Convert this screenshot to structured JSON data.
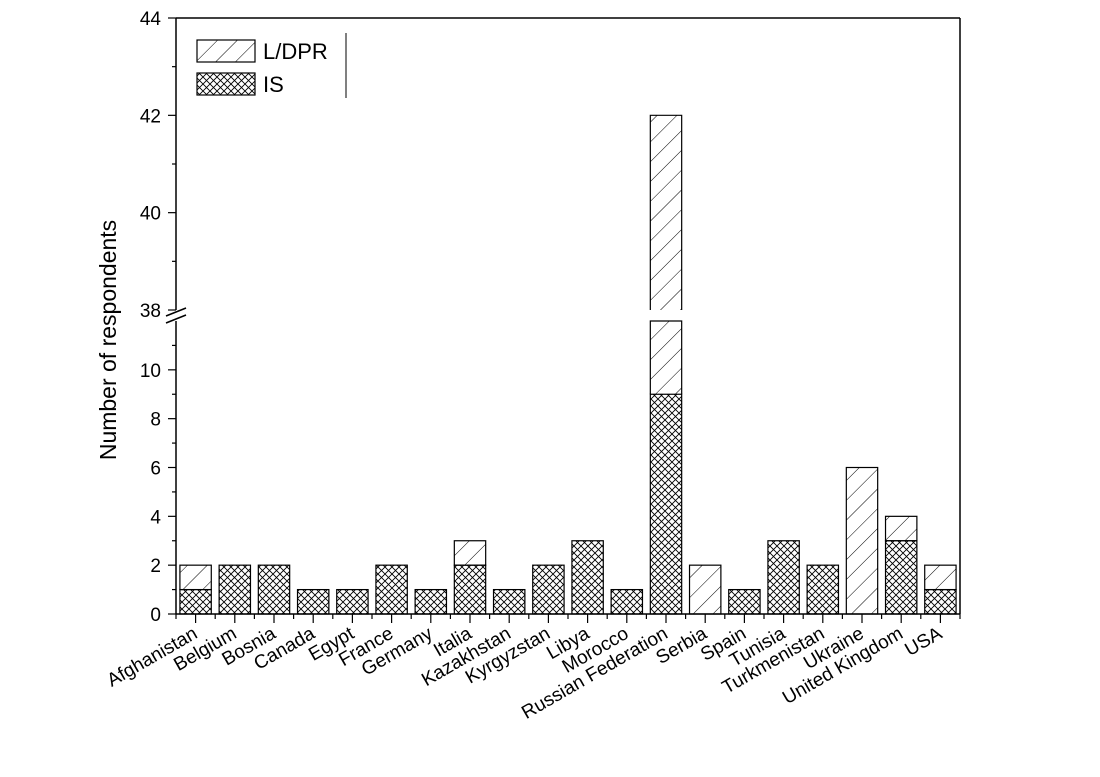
{
  "chart_data": {
    "type": "bar",
    "stacked": true,
    "ylabel": "Number of respondents",
    "xlabel": "",
    "grid": false,
    "legend_position": "top-left",
    "y_axis": {
      "broken": true,
      "lower_range": [
        0,
        12
      ],
      "upper_range": [
        38,
        44
      ],
      "lower_ticks": [
        "0",
        "2",
        "4",
        "6",
        "8",
        "10"
      ],
      "upper_ticks": [
        "38",
        "40",
        "42",
        "44"
      ]
    },
    "categories": [
      "Afghanistan",
      "Belgium",
      "Bosnia",
      "Canada",
      "Egypt",
      "France",
      "Germany",
      "Italia",
      "Kazakhstan",
      "Kyrgyzstan",
      "Libya",
      "Morocco",
      "Russian Federation",
      "Serbia",
      "Spain",
      "Tunisia",
      "Turkmenistan",
      "Ukraine",
      "United Kingdom",
      "USA"
    ],
    "series": [
      {
        "name": "IS",
        "pattern": "crosshatch",
        "values": [
          1,
          2,
          2,
          1,
          1,
          2,
          1,
          2,
          1,
          2,
          3,
          1,
          9,
          0,
          1,
          3,
          2,
          0,
          3,
          1
        ]
      },
      {
        "name": "L/DPR",
        "pattern": "diagonal",
        "values": [
          1,
          0,
          0,
          0,
          0,
          0,
          0,
          1,
          0,
          0,
          0,
          0,
          33,
          2,
          0,
          0,
          0,
          6,
          1,
          1
        ]
      }
    ],
    "legend": [
      "L/DPR",
      "IS"
    ],
    "colors": {
      "bar_fill": "#ffffff",
      "stroke": "#000000"
    }
  }
}
